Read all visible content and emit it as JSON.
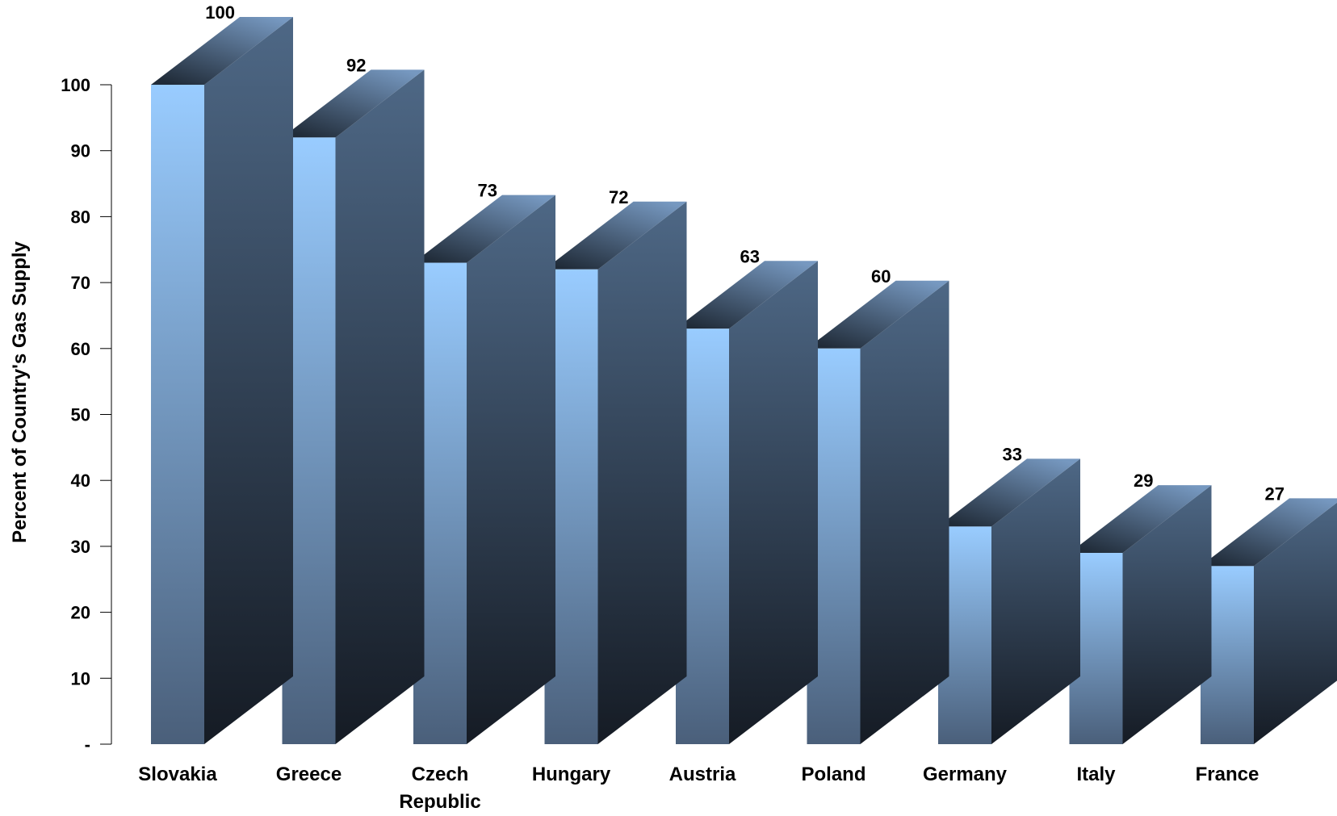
{
  "chart_data": {
    "type": "bar",
    "title": "",
    "xlabel": "",
    "ylabel": "Percent of Country's Gas Supply",
    "categories": [
      "Slovakia",
      "Greece",
      "Czech Republic",
      "Hungary",
      "Austria",
      "Poland",
      "Germany",
      "Italy",
      "France"
    ],
    "category_lines": [
      [
        "Slovakia"
      ],
      [
        "Greece"
      ],
      [
        "Czech",
        "Republic"
      ],
      [
        "Hungary"
      ],
      [
        "Austria"
      ],
      [
        "Poland"
      ],
      [
        "Germany"
      ],
      [
        "Italy"
      ],
      [
        "France"
      ]
    ],
    "values": [
      100,
      92,
      73,
      72,
      63,
      60,
      33,
      29,
      27
    ],
    "value_labels": [
      "100",
      "92",
      "73",
      "72",
      "63",
      "60",
      "33",
      "29",
      "27"
    ],
    "ylim": [
      0,
      100
    ],
    "yticks": [
      0,
      10,
      20,
      30,
      40,
      50,
      60,
      70,
      80,
      90,
      100
    ],
    "ytick_labels": [
      "-",
      "10",
      "20",
      "30",
      "40",
      "50",
      "60",
      "70",
      "80",
      "90",
      "100"
    ],
    "grid": false,
    "legend": "none",
    "style": "3d-column",
    "colors": {
      "front_top": "#99ccff",
      "front_bottom": "#4a5f7a",
      "side_top": "#4e6886",
      "side_bottom": "#151b24",
      "top_light": "#7698c0",
      "top_dark": "#202b38",
      "axis": "#000000"
    }
  }
}
